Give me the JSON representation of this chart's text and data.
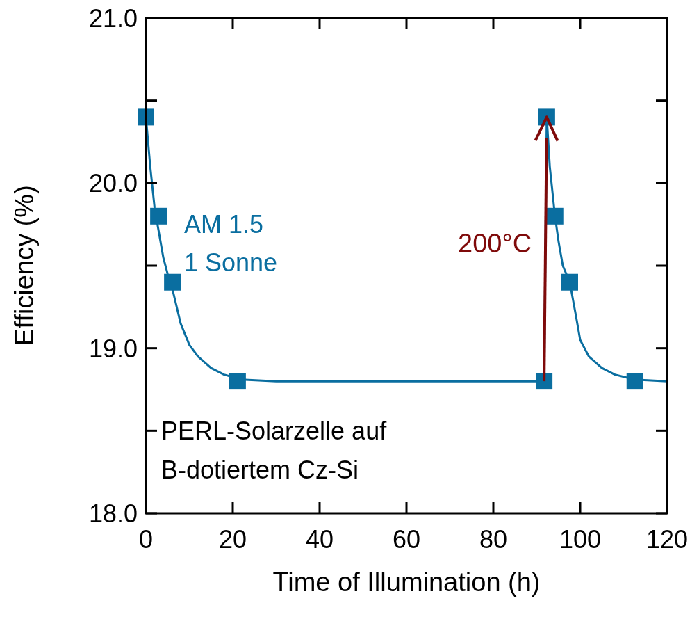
{
  "chart_data": {
    "type": "line",
    "xlabel": "Time of Illumination (h)",
    "ylabel": "Efficiency (%)",
    "xlim": [
      0,
      120
    ],
    "xticks": [
      0,
      20,
      40,
      60,
      80,
      100,
      120
    ],
    "ylim": [
      18,
      21
    ],
    "yticks": [
      {
        "value": 18,
        "label": "18.0"
      },
      {
        "value": 18.5,
        "label": null
      },
      {
        "value": 19,
        "label": "19.0"
      },
      {
        "value": 19.5,
        "label": null
      },
      {
        "value": 20,
        "label": "20.0"
      },
      {
        "value": 20.5,
        "label": null
      },
      {
        "value": 21,
        "label": "21.0"
      }
    ],
    "grid": false,
    "series": [
      {
        "color": "#0a6ea0",
        "marker": "none",
        "line_style": "solid",
        "x": [
          0,
          1,
          2,
          3,
          4,
          5,
          6,
          8,
          10,
          12,
          15,
          18,
          22,
          30,
          91.7,
          92.3,
          93,
          94.2,
          95,
          96,
          97.6,
          99,
          100,
          102,
          105,
          108,
          112.6,
          120
        ],
        "values": [
          20.4,
          20.1,
          19.85,
          19.7,
          19.55,
          19.45,
          19.37,
          19.15,
          19.02,
          18.95,
          18.88,
          18.84,
          18.81,
          18.8,
          18.8,
          20.4,
          20.1,
          19.8,
          19.65,
          19.5,
          19.4,
          19.2,
          19.05,
          18.95,
          18.88,
          18.84,
          18.81,
          18.8
        ]
      },
      {
        "type": "scatter",
        "color": "#0a6ea0",
        "marker": "square",
        "x": [
          0,
          2.9,
          6.1,
          21.1,
          91.7,
          92.3,
          94.2,
          97.6,
          112.6
        ],
        "values": [
          20.4,
          19.8,
          19.4,
          18.8,
          18.8,
          20.4,
          19.8,
          19.4,
          18.8
        ]
      }
    ],
    "annotations": [
      "AM 1.5",
      "1 Sonne",
      "200°C",
      "PERL-Solarzelle auf",
      "B-dotiertem Cz-Si"
    ]
  }
}
